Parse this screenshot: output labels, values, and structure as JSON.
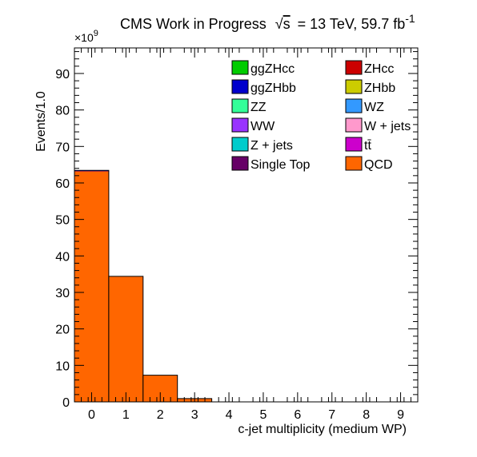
{
  "chart_data": {
    "type": "bar",
    "title_main": "CMS Work in Progress",
    "title_sqrt_s": "s",
    "title_energy": "= 13 TeV, 59.7 fb",
    "title_lumi_exp": "-1",
    "xlabel": "c-jet multiplicity (medium WP)",
    "ylabel": "Events/1.0",
    "y_multiplier_base": "×10",
    "y_multiplier_exp": "9",
    "xlim": [
      -0.5,
      9.5
    ],
    "ylim": [
      0,
      97
    ],
    "x_ticks": [
      "0",
      "1",
      "2",
      "3",
      "4",
      "5",
      "6",
      "7",
      "8",
      "9"
    ],
    "y_ticks": [
      "0",
      "10",
      "20",
      "30",
      "40",
      "50",
      "60",
      "70",
      "80",
      "90"
    ],
    "categories": [
      "0",
      "1",
      "2",
      "3",
      "4",
      "5",
      "6",
      "7",
      "8",
      "9"
    ],
    "series": [
      {
        "name": "QCD",
        "color": "#ff6600",
        "values": [
          63.3,
          34.4,
          7.3,
          0.9,
          0,
          0,
          0,
          0,
          0,
          0
        ]
      },
      {
        "name": "Single Top",
        "color": "#660066",
        "values": [
          0.05,
          0,
          0,
          0,
          0,
          0,
          0,
          0,
          0,
          0
        ]
      },
      {
        "name": "Z + jets",
        "color": "#00cccc",
        "values": [
          0,
          0,
          0,
          0,
          0,
          0,
          0,
          0,
          0,
          0
        ]
      },
      {
        "name": "tt̄",
        "color": "#cc00cc",
        "values": [
          0,
          0,
          0,
          0,
          0,
          0,
          0,
          0,
          0,
          0
        ]
      },
      {
        "name": "WW",
        "color": "#9933ff",
        "values": [
          0,
          0,
          0,
          0,
          0,
          0,
          0,
          0,
          0,
          0
        ]
      },
      {
        "name": "W + jets",
        "color": "#ff99cc",
        "values": [
          0,
          0,
          0,
          0,
          0,
          0,
          0,
          0,
          0,
          0
        ]
      },
      {
        "name": "ZZ",
        "color": "#33ff99",
        "values": [
          0,
          0,
          0,
          0,
          0,
          0,
          0,
          0,
          0,
          0
        ]
      },
      {
        "name": "WZ",
        "color": "#3399ff",
        "values": [
          0,
          0,
          0,
          0,
          0,
          0,
          0,
          0,
          0,
          0
        ]
      },
      {
        "name": "ggZHbb",
        "color": "#0000cc",
        "values": [
          0.1,
          0,
          0,
          0,
          0,
          0,
          0,
          0,
          0,
          0
        ]
      },
      {
        "name": "ZHbb",
        "color": "#cccc00",
        "values": [
          0,
          0,
          0,
          0,
          0,
          0,
          0,
          0,
          0,
          0
        ]
      },
      {
        "name": "ggZHcc",
        "color": "#00cc00",
        "values": [
          0,
          0,
          0,
          0,
          0,
          0,
          0,
          0,
          0,
          0
        ]
      },
      {
        "name": "ZHcc",
        "color": "#cc0000",
        "values": [
          0,
          0,
          0,
          0,
          0,
          0,
          0,
          0,
          0,
          0
        ]
      }
    ],
    "legend_order": [
      "ggZHcc",
      "ZHcc",
      "ggZHbb",
      "ZHbb",
      "ZZ",
      "WZ",
      "WW",
      "W + jets",
      "Z + jets",
      "tt̄",
      "Single Top",
      "QCD"
    ],
    "legend_placement": "top-right",
    "grid": false
  }
}
